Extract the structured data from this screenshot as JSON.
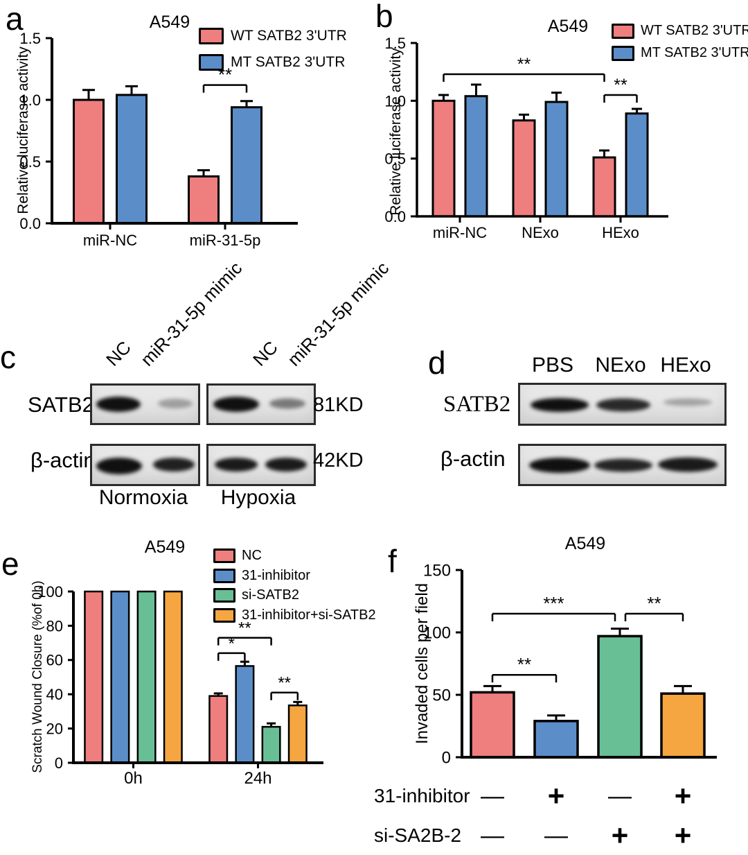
{
  "panel_letters": {
    "a": "a",
    "b": "b",
    "c": "c",
    "d": "d",
    "e": "e",
    "f": "f"
  },
  "colors": {
    "red": "#ef7e7e",
    "blue": "#5b8ec9",
    "green": "#69bf95",
    "orange": "#f5a640",
    "axis": "#000000"
  },
  "chart_data": [
    {
      "id": "a",
      "type": "bar",
      "title": "A549",
      "ylabel": "Relative luciferase activity",
      "categories": [
        "miR-NC",
        "miR-31-5p"
      ],
      "series": [
        {
          "name": "WT SATB2 3'UTR",
          "color": "#ef7e7e",
          "values": [
            1.0,
            0.38
          ],
          "errors": [
            0.08,
            0.05
          ]
        },
        {
          "name": "MT SATB2 3'UTR",
          "color": "#5b8ec9",
          "values": [
            1.04,
            0.94
          ],
          "errors": [
            0.07,
            0.05
          ]
        }
      ],
      "ylim": [
        0,
        1.5
      ],
      "yticks": [
        0,
        0.5,
        1,
        1.5
      ],
      "ytick_labels": [
        "0.0",
        "0.5",
        "1.0",
        "1.5"
      ],
      "grid": false,
      "legend_position": "top-right",
      "significance": [
        {
          "label": "**",
          "from": [
            1,
            0
          ],
          "to": [
            1,
            1
          ],
          "y": 1.12
        }
      ]
    },
    {
      "id": "b",
      "type": "bar",
      "title": "A549",
      "ylabel": "Relative luciferase activity",
      "categories": [
        "miR-NC",
        "NExo",
        "HExo"
      ],
      "series": [
        {
          "name": "WT SATB2 3'UTR",
          "color": "#ef7e7e",
          "values": [
            1.0,
            0.83,
            0.51
          ],
          "errors": [
            0.05,
            0.05,
            0.06
          ]
        },
        {
          "name": "MT SATB2 3'UTR",
          "color": "#5b8ec9",
          "values": [
            1.04,
            0.99,
            0.89
          ],
          "errors": [
            0.1,
            0.08,
            0.04
          ]
        }
      ],
      "ylim": [
        0,
        1.5
      ],
      "yticks": [
        0,
        0.5,
        1,
        1.5
      ],
      "ytick_labels": [
        "0.0",
        "0.5",
        "1.0",
        "1.5"
      ],
      "grid": false,
      "legend_position": "top-right",
      "significance": [
        {
          "label": "**",
          "from": [
            0,
            0
          ],
          "to": [
            2,
            0
          ],
          "y": 1.23
        },
        {
          "label": "**",
          "from": [
            2,
            0
          ],
          "to": [
            2,
            1
          ],
          "y": 1.05
        }
      ]
    },
    {
      "id": "e",
      "type": "bar",
      "title": "A549",
      "ylabel": "Scratch Wound Closure (%of 0h)",
      "categories": [
        "0h",
        "24h"
      ],
      "series": [
        {
          "name": "NC",
          "color": "#ef7e7e",
          "values": [
            100,
            39
          ],
          "errors": [
            0,
            1.5
          ]
        },
        {
          "name": "31-inhibitor",
          "color": "#5b8ec9",
          "values": [
            100,
            56.5
          ],
          "errors": [
            0,
            2.5
          ]
        },
        {
          "name": "si-SATB2",
          "color": "#69bf95",
          "values": [
            100,
            21
          ],
          "errors": [
            0,
            2
          ]
        },
        {
          "name": "31-inhibitor+si-SATB2",
          "color": "#f5a640",
          "values": [
            100,
            33.5
          ],
          "errors": [
            0,
            2
          ]
        }
      ],
      "ylim": [
        0,
        100
      ],
      "yticks": [
        0,
        20,
        40,
        60,
        80,
        100
      ],
      "ytick_labels": [
        "0",
        "20",
        "40",
        "60",
        "80",
        "100"
      ],
      "grid": false,
      "legend_position": "top-right",
      "significance": [
        {
          "label": "*",
          "from": [
            1,
            0
          ],
          "to": [
            1,
            1
          ],
          "y": 64
        },
        {
          "label": "**",
          "from": [
            1,
            0
          ],
          "to": [
            1,
            2
          ],
          "y": 73
        },
        {
          "label": "**",
          "from": [
            1,
            2
          ],
          "to": [
            1,
            3
          ],
          "y": 41
        }
      ]
    },
    {
      "id": "f",
      "type": "bar",
      "title": "A549",
      "ylabel": "Invaded cells per field",
      "categories": [
        "",
        "",
        "",
        ""
      ],
      "series": [
        {
          "name": "",
          "colors": [
            "#ef7e7e",
            "#5b8ec9",
            "#69bf95",
            "#f5a640"
          ],
          "values": [
            52,
            29,
            97,
            51
          ],
          "errors": [
            5,
            4.5,
            6,
            6
          ]
        }
      ],
      "ylim": [
        0,
        150
      ],
      "yticks": [
        0,
        50,
        100,
        150
      ],
      "ytick_labels": [
        "0",
        "50",
        "100",
        "150"
      ],
      "grid": false,
      "legend_position": "none",
      "significance": [
        {
          "label": "**",
          "from": [
            0,
            0
          ],
          "to": [
            1,
            0
          ],
          "y": 66
        },
        {
          "label": "***",
          "from": [
            0,
            0
          ],
          "to": [
            2,
            0
          ],
          "y": 115
        },
        {
          "label": "**",
          "from": [
            2,
            0
          ],
          "to": [
            3,
            0
          ],
          "y": 115
        }
      ],
      "condition_rows": [
        {
          "label": "31-inhibitor",
          "values": [
            "—",
            "+",
            "—",
            "+"
          ]
        },
        {
          "label": "si-SA2B-2",
          "values": [
            "—",
            "—",
            "+",
            "+"
          ]
        }
      ]
    }
  ],
  "blots": {
    "c": {
      "lane_labels": [
        "NC",
        "miR-31-5p mimic",
        "NC",
        "miR-31-5p mimic"
      ],
      "group_labels": [
        "Normoxia",
        "Hypoxia"
      ],
      "rows": [
        {
          "protein": "SATB2",
          "kd": "81KD",
          "band_intensities": [
            1,
            0.32,
            1,
            0.5
          ]
        },
        {
          "protein": "β-actin",
          "kd": "42KD",
          "band_intensities": [
            1,
            0.92,
            0.95,
            0.95
          ]
        }
      ]
    },
    "d": {
      "lane_labels": [
        "PBS",
        "NExo",
        "HExo"
      ],
      "rows": [
        {
          "protein": "SATB2",
          "band_intensities": [
            1,
            0.88,
            0.3
          ]
        },
        {
          "protein": "β-actin",
          "band_intensities": [
            1,
            0.9,
            0.95
          ]
        }
      ]
    }
  }
}
